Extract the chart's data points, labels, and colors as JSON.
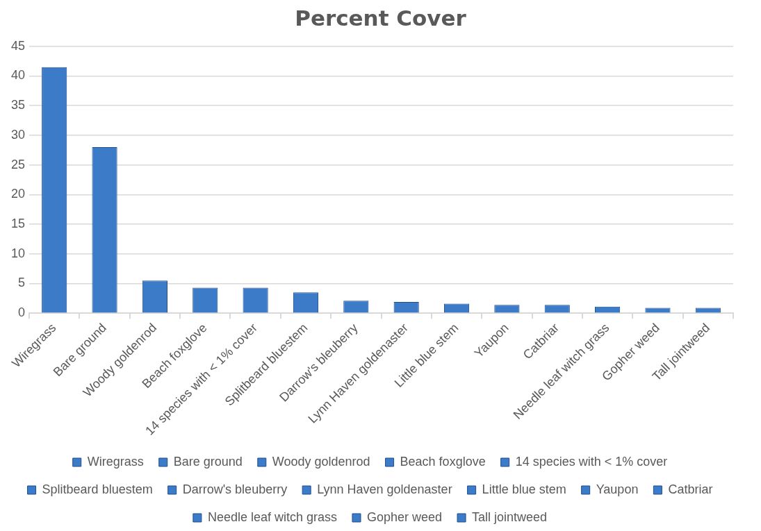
{
  "chart_data": {
    "type": "bar",
    "title": "Percent Cover",
    "categories": [
      "Wiregrass",
      "Bare ground",
      "Woody goldenrod",
      "Beach foxglove",
      "14 species with < 1% cover",
      "Splitbeard bluestem",
      "Darrow's bleuberry",
      "Lynn Haven goldenaster",
      "Little blue stem",
      "Yaupon",
      "Catbriar",
      "Needle leaf witch grass",
      "Gopher weed",
      "Tall jointweed"
    ],
    "series": [
      {
        "name": "Wiregrass",
        "color": "#3b7bc8",
        "values": [
          41.5,
          null,
          null,
          null,
          null,
          null,
          null,
          null,
          null,
          null,
          null,
          null,
          null,
          null
        ]
      },
      {
        "name": "Bare ground",
        "color": "#3b7bc8",
        "values": [
          null,
          28.0,
          null,
          null,
          null,
          null,
          null,
          null,
          null,
          null,
          null,
          null,
          null,
          null
        ]
      },
      {
        "name": "Woody goldenrod",
        "color": "#3b7bc8",
        "values": [
          null,
          null,
          5.5,
          null,
          null,
          null,
          null,
          null,
          null,
          null,
          null,
          null,
          null,
          null
        ]
      },
      {
        "name": "Beach foxglove",
        "color": "#3b7bc8",
        "values": [
          null,
          null,
          null,
          4.3,
          null,
          null,
          null,
          null,
          null,
          null,
          null,
          null,
          null,
          null
        ]
      },
      {
        "name": "14 species with < 1% cover",
        "color": "#3b7bc8",
        "values": [
          null,
          null,
          null,
          null,
          4.3,
          null,
          null,
          null,
          null,
          null,
          null,
          null,
          null,
          null
        ]
      },
      {
        "name": "Splitbeard bluestem",
        "color": "#3b7bc8",
        "values": [
          null,
          null,
          null,
          null,
          null,
          3.5,
          null,
          null,
          null,
          null,
          null,
          null,
          null,
          null
        ]
      },
      {
        "name": "Darrow's bleuberry",
        "color": "#3b7bc8",
        "values": [
          null,
          null,
          null,
          null,
          null,
          null,
          2.1,
          null,
          null,
          null,
          null,
          null,
          null,
          null
        ]
      },
      {
        "name": "Lynn Haven goldenaster",
        "color": "#3b7bc8",
        "values": [
          null,
          null,
          null,
          null,
          null,
          null,
          null,
          1.9,
          null,
          null,
          null,
          null,
          null,
          null
        ]
      },
      {
        "name": "Little blue stem",
        "color": "#3b7bc8",
        "values": [
          null,
          null,
          null,
          null,
          null,
          null,
          null,
          null,
          1.6,
          null,
          null,
          null,
          null,
          null
        ]
      },
      {
        "name": "Yaupon",
        "color": "#3b7bc8",
        "values": [
          null,
          null,
          null,
          null,
          null,
          null,
          null,
          null,
          null,
          1.4,
          null,
          null,
          null,
          null
        ]
      },
      {
        "name": "Catbriar",
        "color": "#3b7bc8",
        "values": [
          null,
          null,
          null,
          null,
          null,
          null,
          null,
          null,
          null,
          null,
          1.4,
          null,
          null,
          null
        ]
      },
      {
        "name": "Needle leaf witch grass",
        "color": "#3b7bc8",
        "values": [
          null,
          null,
          null,
          null,
          null,
          null,
          null,
          null,
          null,
          null,
          null,
          1.1,
          null,
          null
        ]
      },
      {
        "name": "Gopher weed",
        "color": "#3b7bc8",
        "values": [
          null,
          null,
          null,
          null,
          null,
          null,
          null,
          null,
          null,
          null,
          null,
          null,
          0.9,
          null
        ]
      },
      {
        "name": "Tall jointweed",
        "color": "#3b7bc8",
        "values": [
          null,
          null,
          null,
          null,
          null,
          null,
          null,
          null,
          null,
          null,
          null,
          null,
          null,
          0.9
        ]
      }
    ],
    "ylim": [
      0,
      45
    ],
    "yticks": [
      0,
      5,
      10,
      15,
      20,
      25,
      30,
      35,
      40,
      45
    ],
    "grid": "y",
    "legend": "bottom"
  }
}
